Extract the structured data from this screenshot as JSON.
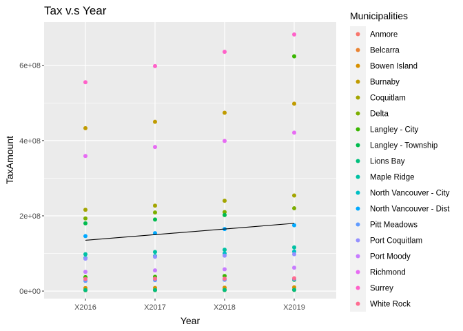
{
  "chart_data": {
    "type": "scatter",
    "title": "Tax v.s Year",
    "xlabel": "Year",
    "ylabel": "TaxAmount",
    "categories": [
      "X2016",
      "X2017",
      "X2018",
      "X2019"
    ],
    "ylim": [
      -20000000,
      715000000
    ],
    "yticks": [
      0,
      200000000,
      400000000,
      600000000
    ],
    "ytick_labels": [
      "0e+00",
      "2e+08",
      "4e+08",
      "6e+08"
    ],
    "grid": true,
    "legend": {
      "title": "Municipalities",
      "position": "right"
    },
    "series": [
      {
        "name": "Anmore",
        "color": "#F8766D",
        "values": [
          3000000,
          3500000,
          4000000,
          4500000
        ]
      },
      {
        "name": "Belcarra",
        "color": "#EA8331",
        "values": [
          2000000,
          2200000,
          2500000,
          2800000
        ]
      },
      {
        "name": "Bowen Island",
        "color": "#D89000",
        "values": [
          8000000,
          8500000,
          9000000,
          10000000
        ]
      },
      {
        "name": "Burnaby",
        "color": "#C09B00",
        "values": [
          433000000,
          450000000,
          474000000,
          498000000
        ]
      },
      {
        "name": "Coquitlam",
        "color": "#A3A500",
        "values": [
          216000000,
          227000000,
          240000000,
          254000000
        ]
      },
      {
        "name": "Delta",
        "color": "#7CAE00",
        "values": [
          193000000,
          209000000,
          210000000,
          220000000
        ]
      },
      {
        "name": "Langley - City",
        "color": "#39B600",
        "values": [
          37000000,
          38000000,
          40000000,
          624000000
        ]
      },
      {
        "name": "Langley - Township",
        "color": "#00BB4E",
        "values": [
          180000000,
          190000000,
          202000000,
          30000000
        ]
      },
      {
        "name": "Lions Bay",
        "color": "#00BF7D",
        "values": [
          2500000,
          2700000,
          3000000,
          3200000
        ]
      },
      {
        "name": "Maple Ridge",
        "color": "#00C1A3",
        "values": [
          98000000,
          104000000,
          110000000,
          116000000
        ]
      },
      {
        "name": "North Vancouver - City",
        "color": "#00BFC4",
        "values": [
          88000000,
          93000000,
          100000000,
          105000000
        ]
      },
      {
        "name": "North Vancouver - Dist",
        "color": "#00A9FF",
        "values": [
          146000000,
          154000000,
          165000000,
          175000000
        ]
      },
      {
        "name": "Pitt Meadows",
        "color": "#619CFF",
        "values": [
          27000000,
          29000000,
          30000000,
          32000000
        ]
      },
      {
        "name": "Port Coquitlam",
        "color": "#9590FF",
        "values": [
          86000000,
          91000000,
          94000000,
          98000000
        ]
      },
      {
        "name": "Port Moody",
        "color": "#C77CFF",
        "values": [
          51000000,
          55000000,
          58000000,
          62000000
        ]
      },
      {
        "name": "Richmond",
        "color": "#E76BF3",
        "values": [
          359000000,
          383000000,
          399000000,
          421000000
        ]
      },
      {
        "name": "Surrey",
        "color": "#FF61C9",
        "values": [
          555000000,
          598000000,
          636000000,
          682000000
        ]
      },
      {
        "name": "White Rock",
        "color": "#FF6C91",
        "values": [
          32000000,
          33000000,
          33000000,
          34000000
        ]
      }
    ],
    "trend_line": {
      "color": "#000000",
      "start": 135000000,
      "end": 180000000
    }
  }
}
